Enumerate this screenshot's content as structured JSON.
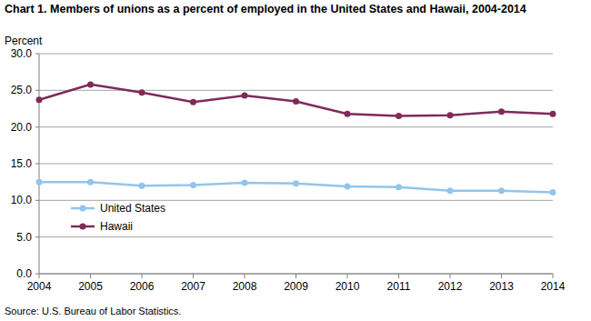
{
  "chart_data": {
    "type": "line",
    "title": "Chart 1. Members of unions as a percent of employed in the United States and Hawaii, 2004-2014",
    "y_label": "Percent",
    "source": "Source: U.S. Bureau of Labor Statistics.",
    "categories": [
      "2004",
      "2005",
      "2006",
      "2007",
      "2008",
      "2009",
      "2010",
      "2011",
      "2012",
      "2013",
      "2014"
    ],
    "series": [
      {
        "name": "United States",
        "color": "#92c5ec",
        "marker": "circle",
        "values": [
          12.5,
          12.5,
          12.0,
          12.1,
          12.4,
          12.3,
          11.9,
          11.8,
          11.3,
          11.3,
          11.1
        ]
      },
      {
        "name": "Hawaii",
        "color": "#7f2a5a",
        "marker": "circle",
        "values": [
          23.7,
          25.8,
          24.7,
          23.4,
          24.3,
          23.5,
          21.8,
          21.5,
          21.6,
          22.1,
          21.8
        ]
      }
    ],
    "ylim": [
      0,
      30
    ],
    "yticks": [
      {
        "value": 0,
        "label": "0.0"
      },
      {
        "value": 5,
        "label": "5.0"
      },
      {
        "value": 10,
        "label": "10.0"
      },
      {
        "value": 15,
        "label": "15.0"
      },
      {
        "value": 20,
        "label": "20.0"
      },
      {
        "value": 25,
        "label": "25.0"
      },
      {
        "value": 30,
        "label": "30.0"
      }
    ],
    "grid": true,
    "legend": "lower left"
  }
}
